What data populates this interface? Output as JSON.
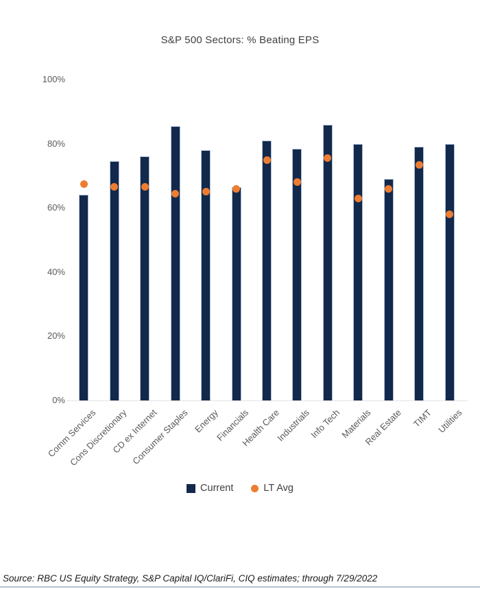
{
  "chart_data": {
    "type": "bar",
    "title": "S&P 500 Sectors: % Beating EPS",
    "categories": [
      "Comm Services",
      "Cons Discretionary",
      "CD ex Internet",
      "Consumer Staples",
      "Energy",
      "Financials",
      "Health Care",
      "Industrials",
      "Info Tech",
      "Materials",
      "Real Estate",
      "TIMT",
      "Utilities"
    ],
    "series": [
      {
        "name": "Current",
        "type": "bar",
        "color": "#13294b",
        "values": [
          64,
          74.5,
          76,
          85.5,
          78,
          66.5,
          81,
          78.5,
          86,
          80,
          69,
          79,
          80
        ]
      },
      {
        "name": "LT Avg",
        "type": "point",
        "color": "#ed7d31",
        "values": [
          67.5,
          66.5,
          66.5,
          64.5,
          65,
          66,
          75,
          68,
          75.5,
          63,
          66,
          73.5,
          58
        ]
      }
    ],
    "ylabel": "",
    "xlabel": "",
    "ylim": [
      0,
      100
    ],
    "yticks": [
      {
        "label": "100%",
        "value": 100
      },
      {
        "label": "80%",
        "value": 80
      },
      {
        "label": "60%",
        "value": 60
      },
      {
        "label": "40%",
        "value": 40
      },
      {
        "label": "20%",
        "value": 20
      },
      {
        "label": "0%",
        "value": 0
      }
    ],
    "grid": "off",
    "legend_position": "bottom",
    "baseline_style": "dotted"
  },
  "legend": {
    "current_label": "Current",
    "lt_avg_label": "LT Avg"
  },
  "footer": {
    "source": "Source: RBC US Equity Strategy, S&P Capital IQ/ClariFi, CIQ estimates; through 7/29/2022"
  },
  "colors": {
    "bar_navy": "#13294b",
    "dot_orange": "#ed7d31",
    "axis_text": "#595959",
    "title_text": "#404040",
    "footer_rule": "#b5c1ce"
  }
}
